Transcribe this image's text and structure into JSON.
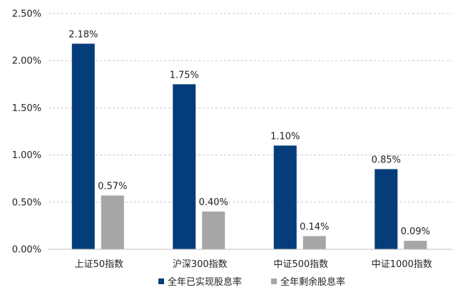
{
  "chart_data": {
    "type": "bar",
    "categories": [
      "上证50指数",
      "沪深300指数",
      "中证500指数",
      "中证1000指数"
    ],
    "series": [
      {
        "name": "全年已实现股息率",
        "values": [
          2.18,
          1.75,
          1.1,
          0.85
        ],
        "labels": [
          "2.18%",
          "1.75%",
          "1.10%",
          "0.85%"
        ],
        "color": "#053D7A"
      },
      {
        "name": "全年剩余股息率",
        "values": [
          0.57,
          0.4,
          0.14,
          0.09
        ],
        "labels": [
          "0.57%",
          "0.40%",
          "0.14%",
          "0.09%"
        ],
        "color": "#A6A6A6"
      }
    ],
    "yticks": [
      {
        "value": 0.0,
        "label": "0.00%"
      },
      {
        "value": 0.5,
        "label": "0.50%"
      },
      {
        "value": 1.0,
        "label": "1.00%"
      },
      {
        "value": 1.5,
        "label": "1.50%"
      },
      {
        "value": 2.0,
        "label": "2.00%"
      },
      {
        "value": 2.5,
        "label": "2.50%"
      }
    ],
    "ylim": [
      0,
      2.5
    ],
    "title": "",
    "xlabel": "",
    "ylabel": "",
    "grid": true,
    "legend_position": "bottom-center"
  }
}
